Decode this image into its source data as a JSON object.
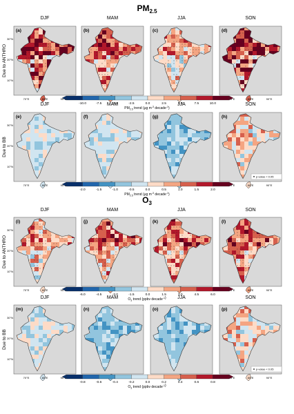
{
  "sections": [
    {
      "title": "PM",
      "title_sub": "2.5",
      "rows": [
        {
          "row_label": "Due to ANTHRO",
          "panels": [
            {
              "letter": "(a)",
              "season": "DJF",
              "mean_level": 7,
              "contrast": 3,
              "dots": true
            },
            {
              "letter": "(b)",
              "season": "MAM",
              "mean_level": 6,
              "contrast": 2,
              "dots": true
            },
            {
              "letter": "(c)",
              "season": "JJA",
              "mean_level": 5,
              "contrast": 2,
              "dots": true
            },
            {
              "letter": "(d)",
              "season": "SON",
              "mean_level": 7,
              "contrast": 3,
              "dots": true
            }
          ],
          "colorbar": {
            "ticks": [
              "-10.0",
              "-7.5",
              "-5.0",
              "-2.5",
              "0.0",
              "2.5",
              "5.0",
              "7.5",
              "10.0"
            ],
            "label": "PM",
            "label_sub": "2.5",
            "label_rest": " trend (μg m",
            "label_sup": "-3",
            "label_tail": " decade",
            "label_sup2": "-1",
            "label_end": ")"
          }
        },
        {
          "row_label": "Due to BB",
          "panels": [
            {
              "letter": "(e)",
              "season": "DJF",
              "mean_level": 4,
              "contrast": 1,
              "dots": false
            },
            {
              "letter": "(f)",
              "season": "MAM",
              "mean_level": 4,
              "contrast": 1,
              "dots": false
            },
            {
              "letter": "(g)",
              "season": "JJA",
              "mean_level": 3,
              "contrast": 1,
              "dots": false
            },
            {
              "letter": "(h)",
              "season": "SON",
              "mean_level": 5,
              "contrast": 2,
              "dots": false
            }
          ],
          "colorbar": {
            "ticks": [
              "-2.0",
              "-1.5",
              "-1.0",
              "-0.5",
              "0.0",
              "0.5",
              "1.0",
              "1.5",
              "2.0"
            ],
            "label": "PM",
            "label_sub": "2.5",
            "label_rest": " trend (μg m",
            "label_sup": "-3",
            "label_tail": " decade",
            "label_sup2": "-1",
            "label_end": ")"
          },
          "legend": "p-value < 0.05"
        }
      ]
    },
    {
      "title": "O",
      "title_sub": "3",
      "rows": [
        {
          "row_label": "Due to ANTHRO",
          "panels": [
            {
              "letter": "(i)",
              "season": "DJF",
              "mean_level": 5,
              "contrast": 2,
              "dots": true
            },
            {
              "letter": "(j)",
              "season": "MAM",
              "mean_level": 6,
              "contrast": 2,
              "dots": true
            },
            {
              "letter": "(k)",
              "season": "JJA",
              "mean_level": 6,
              "contrast": 2,
              "dots": true
            },
            {
              "letter": "(l)",
              "season": "SON",
              "mean_level": 6,
              "contrast": 2,
              "dots": true
            }
          ],
          "colorbar": {
            "ticks": [
              "-6.0",
              "-4.5",
              "-3.0",
              "-1.5",
              "0.0",
              "1.5",
              "3.0",
              "4.5",
              "6.0"
            ],
            "label": "O",
            "label_sub": "3",
            "label_rest": " trend (ppbv decade",
            "label_sup": "-1",
            "label_tail": "",
            "label_sup2": "",
            "label_end": ")"
          }
        },
        {
          "row_label": "Due to BB",
          "panels": [
            {
              "letter": "(m)",
              "season": "DJF",
              "mean_level": 4,
              "contrast": 1,
              "dots": false
            },
            {
              "letter": "(n)",
              "season": "MAM",
              "mean_level": 3,
              "contrast": 1,
              "dots": false
            },
            {
              "letter": "(o)",
              "season": "JJA",
              "mean_level": 3,
              "contrast": 1,
              "dots": false
            },
            {
              "letter": "(p)",
              "season": "SON",
              "mean_level": 5,
              "contrast": 2,
              "dots": false
            }
          ],
          "colorbar": {
            "ticks": [
              "-0.8",
              "-0.6",
              "-0.4",
              "-0.2",
              "0.0",
              "0.2",
              "0.4",
              "0.6",
              "0.8"
            ],
            "label": "O",
            "label_sub": "3",
            "label_rest": " trend (ppbv decade",
            "label_sup": "-1",
            "label_tail": "",
            "label_sup2": "",
            "label_end": ")"
          },
          "legend": "p-value < 0.05"
        }
      ]
    }
  ],
  "lon_ticks": [
    "70°E",
    "80°E",
    "90°E"
  ],
  "lat_ticks": [
    "30°N",
    "20°N",
    "10°N"
  ],
  "colors": {
    "ocean": "#d9d9d9",
    "border": "#333333",
    "scale": [
      "#08306b",
      "#2166ac",
      "#4393c3",
      "#92c5de",
      "#d1e5f0",
      "#fddbc7",
      "#f4a582",
      "#d6604d",
      "#b2182b",
      "#67001f"
    ]
  }
}
